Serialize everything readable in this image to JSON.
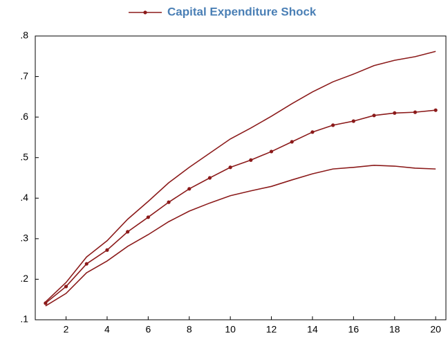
{
  "chart_data": {
    "type": "line",
    "title": "Capital Expenditure Shock",
    "x": [
      1,
      2,
      3,
      4,
      5,
      6,
      7,
      8,
      9,
      10,
      11,
      12,
      13,
      14,
      15,
      16,
      17,
      18,
      19,
      20
    ],
    "xlim": [
      0.5,
      20.5
    ],
    "xticks": [
      2,
      4,
      6,
      8,
      10,
      12,
      14,
      16,
      18,
      20
    ],
    "ylim": [
      0.1,
      0.8
    ],
    "yticks": [
      {
        "value": 0.1,
        "label": ".1"
      },
      {
        "value": 0.2,
        "label": ".2"
      },
      {
        "value": 0.3,
        "label": ".3"
      },
      {
        "value": 0.4,
        "label": ".4"
      },
      {
        "value": 0.5,
        "label": ".5"
      },
      {
        "value": 0.6,
        "label": ".6"
      },
      {
        "value": 0.7,
        "label": ".7"
      },
      {
        "value": 0.8,
        "label": ".8"
      }
    ],
    "series": [
      {
        "name": "Capital Expenditure Shock",
        "color": "#8b1a1a",
        "markers": true,
        "values": [
          0.141,
          0.182,
          0.238,
          0.272,
          0.317,
          0.353,
          0.39,
          0.423,
          0.45,
          0.476,
          0.494,
          0.515,
          0.539,
          0.563,
          0.58,
          0.59,
          0.604,
          0.61,
          0.612,
          0.617
        ]
      },
      {
        "color": "#8b1a1a",
        "markers": false,
        "values": [
          0.144,
          0.192,
          0.255,
          0.295,
          0.348,
          0.392,
          0.438,
          0.476,
          0.511,
          0.546,
          0.573,
          0.602,
          0.633,
          0.662,
          0.687,
          0.706,
          0.727,
          0.74,
          0.749,
          0.762
        ]
      },
      {
        "color": "#8b1a1a",
        "markers": false,
        "values": [
          0.134,
          0.165,
          0.216,
          0.245,
          0.281,
          0.31,
          0.342,
          0.368,
          0.388,
          0.406,
          0.418,
          0.429,
          0.445,
          0.46,
          0.472,
          0.476,
          0.481,
          0.479,
          0.474,
          0.472
        ]
      }
    ]
  }
}
